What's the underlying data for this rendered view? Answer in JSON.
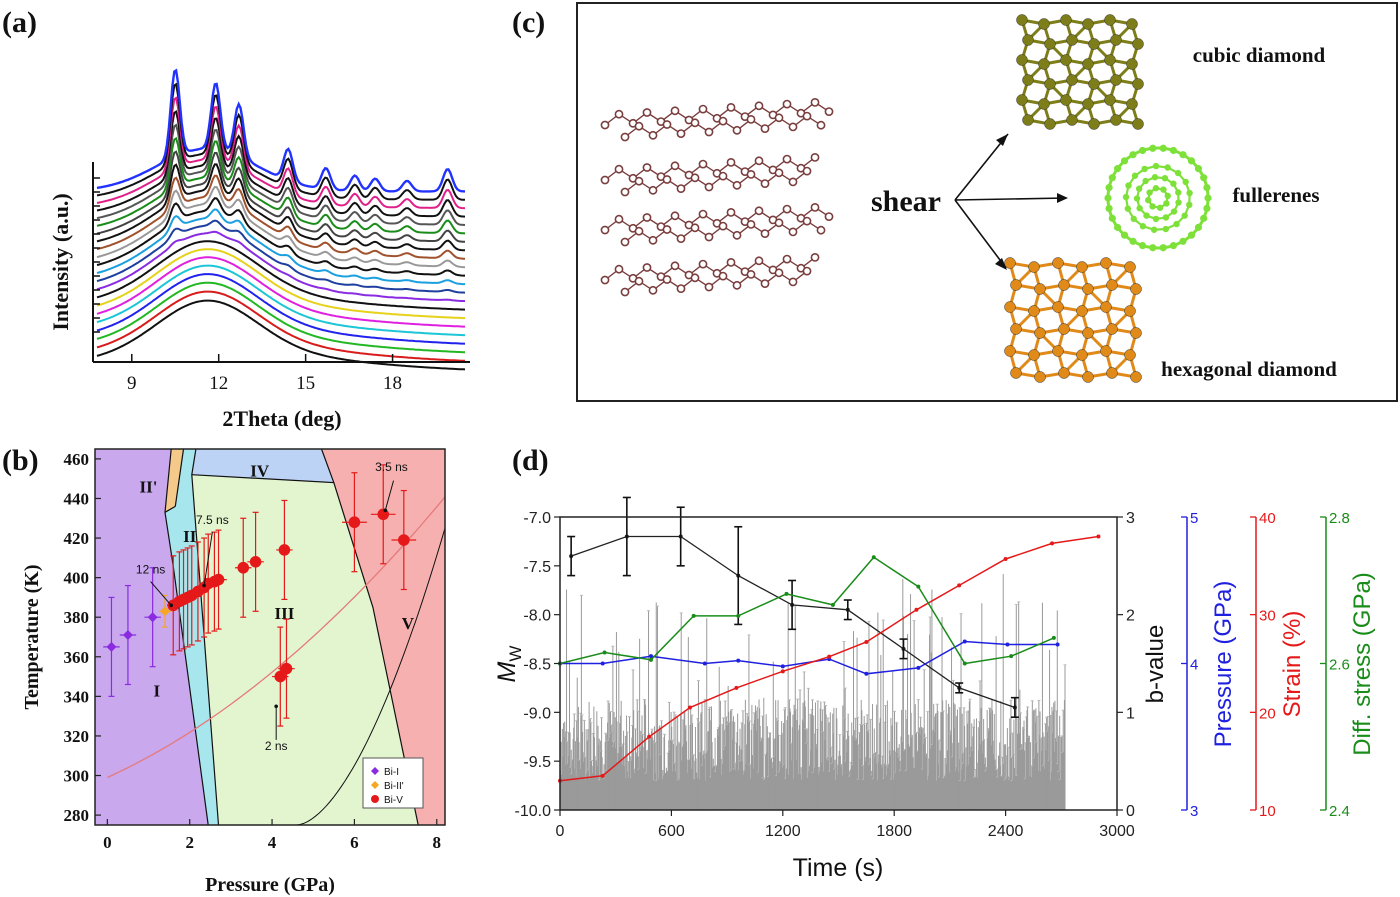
{
  "panels": {
    "a": "(a)",
    "b": "(b)",
    "c": "(c)",
    "d": "(d)"
  },
  "chart_data": [
    {
      "id": "a",
      "type": "line",
      "xlabel": "2Theta (deg)",
      "ylabel": "Intensity (a.u.)",
      "xticks": [
        "9",
        "12",
        "15",
        "18"
      ],
      "xlim": [
        7.8,
        20.5
      ],
      "peaks_deg": [
        10.5,
        11.9,
        12.7,
        14.4,
        15.7,
        16.7,
        17.4,
        18.5,
        19.9
      ],
      "series_colors": [
        "#111111",
        "#d81b1b",
        "#23b823",
        "#2222ee",
        "#1cc6d6",
        "#e020e0",
        "#e6d21a",
        "#111111",
        "#8a2be2",
        "#1f3f9f",
        "#1aa0e0",
        "#111111",
        "#999999",
        "#a0522d",
        "#111111",
        "#444444",
        "#1a8c1a",
        "#555555",
        "#111111",
        "#e0208a",
        "#111111",
        "#2233ff"
      ]
    },
    {
      "id": "b",
      "type": "scatter",
      "xlabel": "Pressure (GPa)",
      "ylabel": "Temperature (K)",
      "xlim": [
        -0.3,
        8.2
      ],
      "ylim": [
        275,
        465
      ],
      "xticks": [
        "0",
        "2",
        "4",
        "6",
        "8"
      ],
      "yticks": [
        "280",
        "300",
        "320",
        "340",
        "360",
        "380",
        "400",
        "420",
        "440",
        "460"
      ],
      "phases": [
        {
          "label": "I",
          "color": "#c9a8ee",
          "label_at": [
            1.2,
            340
          ]
        },
        {
          "label": "II'",
          "color": "#f5c98a",
          "label_at": [
            1.0,
            443
          ]
        },
        {
          "label": "II",
          "color": "#a8e6ee",
          "label_at": [
            2.0,
            418
          ]
        },
        {
          "label": "III",
          "color": "#e3f5cf",
          "label_at": [
            4.3,
            379
          ]
        },
        {
          "label": "IV",
          "color": "#bdd3f5",
          "label_at": [
            3.7,
            451
          ]
        },
        {
          "label": "V",
          "color": "#f7b0b0",
          "label_at": [
            7.3,
            374
          ]
        }
      ],
      "series": [
        {
          "name": "Bi-I",
          "color": "#8a2be2",
          "marker": "diamond",
          "x": [
            0.1,
            0.5,
            1.1
          ],
          "y": [
            365,
            371,
            380
          ],
          "yerr": [
            25,
            25,
            25
          ],
          "xerr": [
            0.2,
            0.2,
            0.2
          ]
        },
        {
          "name": "Bi-II'",
          "color": "#f5a623",
          "marker": "diamond",
          "x": [
            1.4
          ],
          "y": [
            383
          ],
          "yerr": [
            8
          ],
          "xerr": [
            0.15
          ]
        },
        {
          "name": "Bi-V",
          "color": "#e51919",
          "marker": "circle",
          "x": [
            1.6,
            1.75,
            1.85,
            1.95,
            2.05,
            2.2,
            2.35,
            2.45,
            2.6,
            2.7,
            3.3,
            3.6,
            4.3,
            4.2,
            4.35,
            6.0,
            6.7,
            7.2
          ],
          "y": [
            386,
            388,
            389,
            390,
            391,
            393,
            395,
            397,
            398,
            399,
            405,
            408,
            414,
            350,
            354,
            428,
            432,
            419
          ],
          "yerr": [
            25,
            25,
            25,
            25,
            25,
            25,
            25,
            25,
            25,
            25,
            25,
            25,
            25,
            25,
            25,
            25,
            25,
            25
          ],
          "xerr": [
            0.15,
            0.15,
            0.15,
            0.15,
            0.15,
            0.15,
            0.15,
            0.15,
            0.15,
            0.2,
            0.2,
            0.2,
            0.2,
            0.2,
            0.2,
            0.3,
            0.3,
            0.3
          ]
        }
      ],
      "annotations": [
        {
          "text": "12 ns",
          "x": 1.05,
          "y": 402
        },
        {
          "text": "7.5 ns",
          "x": 2.55,
          "y": 427
        },
        {
          "text": "3.5 ns",
          "x": 6.9,
          "y": 454
        },
        {
          "text": "2 ns",
          "x": 4.1,
          "y": 313
        }
      ],
      "legend": [
        "Bi-I",
        "Bi-II'",
        "Bi-V"
      ],
      "legend_position": "bottom-right"
    },
    {
      "id": "d",
      "type": "line",
      "xlabel": "Time (s)",
      "ylabel_left": "M",
      "ylabel_left_sub": "W",
      "ylabel_b": "b-value",
      "xlim": [
        0,
        3000
      ],
      "xticks": [
        "0",
        "600",
        "1200",
        "1800",
        "2400",
        "3000"
      ],
      "ylim_mw": [
        -10.0,
        -7.0
      ],
      "mw_ticks": [
        "-7.0",
        "-7.5",
        "-8.0",
        "-8.5",
        "-9.0",
        "-9.5",
        "-10.0"
      ],
      "ylim_b": [
        0,
        3
      ],
      "b_ticks": [
        "3",
        "2",
        "1",
        "0"
      ],
      "extra_axes": [
        {
          "label": "Pressure (GPa)",
          "color": "#2020e0",
          "range": [
            3,
            5
          ],
          "ticks": [
            "5",
            "4",
            "3"
          ]
        },
        {
          "label": "Strain (%)",
          "color": "#e51919",
          "range": [
            10,
            40
          ],
          "ticks": [
            "40",
            "30",
            "20",
            "10"
          ]
        },
        {
          "label": "Diff. stress (GPa)",
          "color": "#1a8c1a",
          "range": [
            2.4,
            2.8
          ],
          "ticks": [
            "2.8",
            "2.6",
            "2.4"
          ]
        }
      ],
      "series": [
        {
          "name": "b-value",
          "color": "#222222",
          "x": [
            60,
            360,
            650,
            960,
            1250,
            1550,
            1850,
            2150,
            2450
          ],
          "y": [
            2.6,
            2.8,
            2.8,
            2.4,
            2.1,
            2.05,
            1.65,
            1.25,
            1.05
          ],
          "err": [
            0.2,
            0.4,
            0.3,
            0.5,
            0.25,
            0.1,
            0.1,
            0.05,
            0.1
          ]
        },
        {
          "name": "Pressure",
          "color": "#2020e0",
          "x": [
            0,
            230,
            490,
            780,
            960,
            1200,
            1450,
            1650,
            1930,
            2180,
            2410,
            2680
          ],
          "y": [
            4.0,
            4.0,
            4.05,
            4.0,
            4.02,
            3.98,
            4.03,
            3.93,
            3.97,
            4.15,
            4.13,
            4.13
          ]
        },
        {
          "name": "Strain",
          "color": "#e51919",
          "x": [
            0,
            230,
            480,
            700,
            950,
            1200,
            1450,
            1650,
            1920,
            2150,
            2400,
            2650,
            2900
          ],
          "y": [
            13,
            13.5,
            17.5,
            20.5,
            22.5,
            24.2,
            25.7,
            27.2,
            30.5,
            33,
            35.7,
            37.3,
            38
          ]
        },
        {
          "name": "Diff. stress",
          "color": "#1a8c1a",
          "x": [
            0,
            240,
            490,
            720,
            960,
            1220,
            1470,
            1690,
            1930,
            2180,
            2430,
            2660
          ],
          "y": [
            2.6,
            2.615,
            2.605,
            2.665,
            2.665,
            2.695,
            2.68,
            2.745,
            2.705,
            2.6,
            2.61,
            2.635
          ]
        }
      ],
      "event_bars": {
        "color": "#9a9a9a",
        "xmax": 2720,
        "baseline": -10.0
      }
    }
  ],
  "diagram_c": {
    "center_label": "shear",
    "products": [
      "cubic diamond",
      "fullerenes",
      "hexagonal diamond"
    ],
    "colors": {
      "graphite": "#7a3e3e",
      "cubic": "#7d7d1a",
      "fullerene": "#7ee13a",
      "hexagonal": "#e08a1a"
    }
  }
}
